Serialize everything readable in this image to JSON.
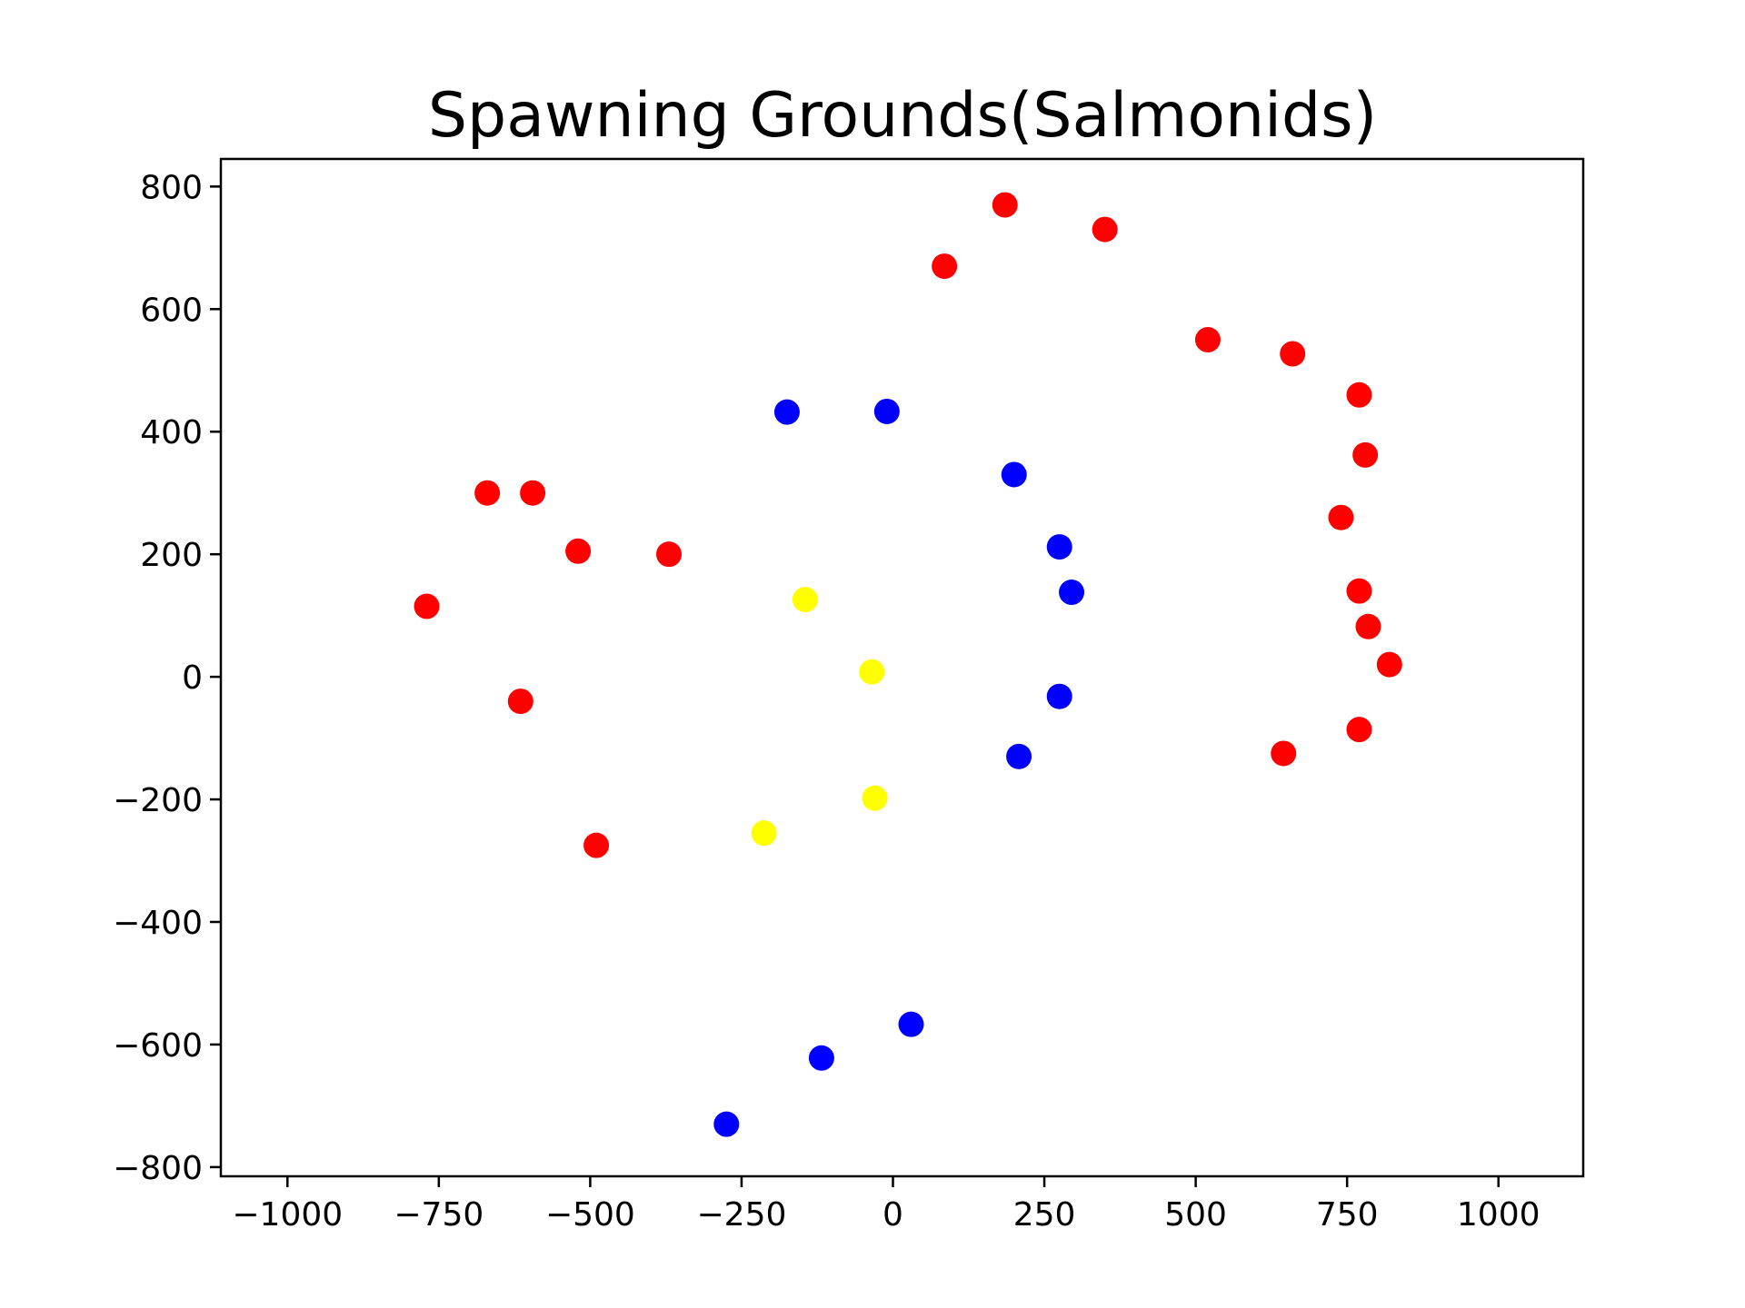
{
  "chart_data": {
    "type": "scatter",
    "title": "Spawning Grounds(Salmonids)",
    "xlabel": "",
    "ylabel": "",
    "xlim": [
      -1110,
      1140
    ],
    "ylim": [
      -815,
      845
    ],
    "xticks": [
      -1000,
      -750,
      -500,
      -250,
      0,
      250,
      500,
      750,
      1000
    ],
    "yticks": [
      -800,
      -600,
      -400,
      -200,
      0,
      200,
      400,
      600,
      800
    ],
    "xtick_labels": [
      "−1000",
      "−750",
      "−500",
      "−250",
      "0",
      "250",
      "500",
      "750",
      "1000"
    ],
    "ytick_labels": [
      "−800",
      "−600",
      "−400",
      "−200",
      "0",
      "200",
      "400",
      "600",
      "800"
    ],
    "grid": false,
    "series": [
      {
        "color": "#ff0000",
        "x": [
          85,
          185,
          350,
          520,
          660,
          770,
          780,
          740,
          770,
          785,
          820,
          770,
          645,
          -770,
          -670,
          -595,
          -520,
          -370,
          -615,
          -490
        ],
        "y": [
          670,
          770,
          730,
          550,
          527,
          460,
          362,
          260,
          140,
          82,
          20,
          -86,
          -125,
          115,
          300,
          300,
          205,
          200,
          -40,
          -275
        ]
      },
      {
        "color": "#0000ff",
        "x": [
          -175,
          -10,
          200,
          275,
          295,
          275,
          208,
          30,
          -118,
          -275
        ],
        "y": [
          432,
          433,
          330,
          212,
          138,
          -32,
          -130,
          -567,
          -622,
          -730
        ]
      },
      {
        "color": "#ffff00",
        "x": [
          -145,
          -35,
          -30,
          -213
        ],
        "y": [
          126,
          8,
          -198,
          -255
        ]
      }
    ]
  }
}
